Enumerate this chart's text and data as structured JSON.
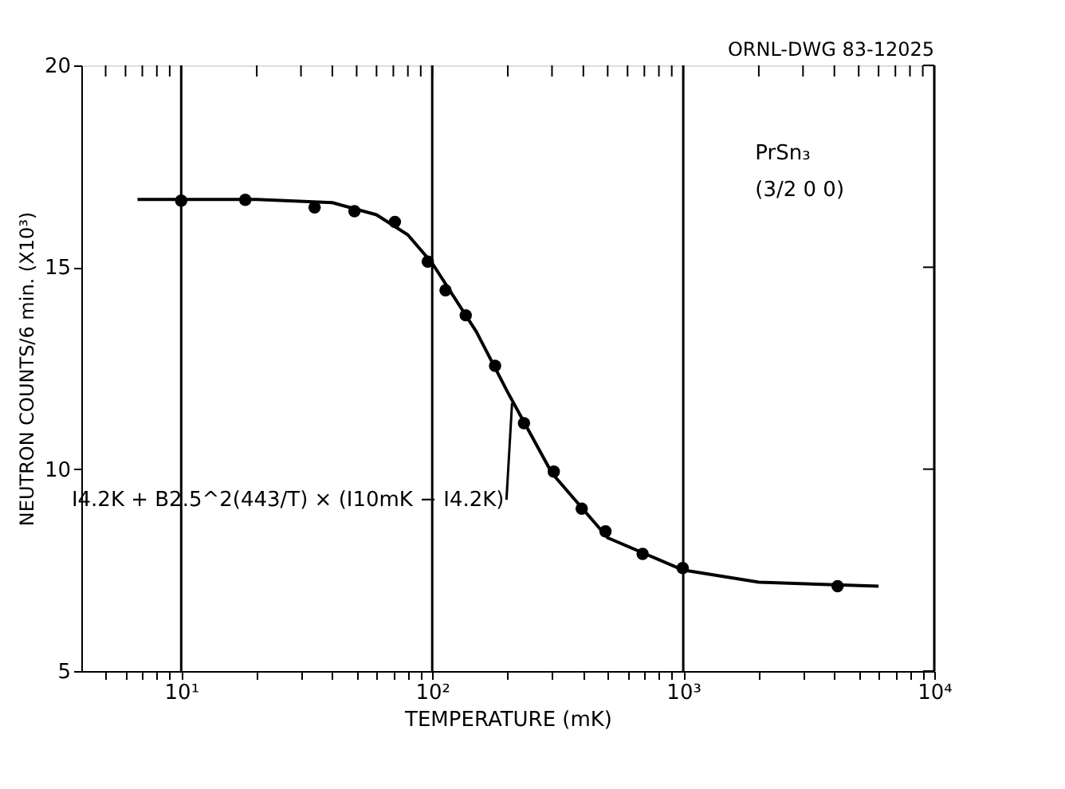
{
  "chart_data": {
    "type": "scatter",
    "xlabel": "TEMPERATURE (mK)",
    "ylabel": "NEUTRON COUNTS/6 min. (X10³)",
    "log": "x",
    "grid": "x",
    "xlim": [
      4,
      10000
    ],
    "ylim": [
      5,
      20
    ],
    "xticks": [
      {
        "value": 5,
        "label": null
      },
      {
        "value": 6,
        "label": null
      },
      {
        "value": 7,
        "label": null
      },
      {
        "value": 8,
        "label": null
      },
      {
        "value": 9,
        "label": null
      },
      {
        "value": 10,
        "label": "10¹"
      },
      {
        "value": 20,
        "label": null
      },
      {
        "value": 30,
        "label": null
      },
      {
        "value": 40,
        "label": null
      },
      {
        "value": 50,
        "label": null
      },
      {
        "value": 60,
        "label": null
      },
      {
        "value": 70,
        "label": null
      },
      {
        "value": 80,
        "label": null
      },
      {
        "value": 90,
        "label": null
      },
      {
        "value": 100,
        "label": "10²"
      },
      {
        "value": 200,
        "label": null
      },
      {
        "value": 300,
        "label": null
      },
      {
        "value": 400,
        "label": null
      },
      {
        "value": 500,
        "label": null
      },
      {
        "value": 600,
        "label": null
      },
      {
        "value": 700,
        "label": null
      },
      {
        "value": 800,
        "label": null
      },
      {
        "value": 900,
        "label": null
      },
      {
        "value": 1000,
        "label": "10³"
      },
      {
        "value": 2000,
        "label": null
      },
      {
        "value": 3000,
        "label": null
      },
      {
        "value": 4000,
        "label": null
      },
      {
        "value": 5000,
        "label": null
      },
      {
        "value": 6000,
        "label": null
      },
      {
        "value": 7000,
        "label": null
      },
      {
        "value": 8000,
        "label": null
      },
      {
        "value": 9000,
        "label": null
      },
      {
        "value": 10000,
        "label": "10⁴"
      }
    ],
    "yticks": [
      5,
      10,
      15,
      20
    ],
    "series": [
      {
        "marker": "circle",
        "color": "#000000",
        "x": [
          10,
          18,
          34,
          49,
          71,
          96,
          113,
          136,
          178,
          232,
          305,
          394,
          490,
          689,
          995,
          4120
        ],
        "values": [
          16.65,
          16.67,
          16.48,
          16.39,
          16.12,
          15.14,
          14.43,
          13.81,
          12.56,
          11.14,
          9.94,
          9.02,
          8.46,
          7.9,
          7.55,
          7.1
        ]
      },
      {
        "type": "line",
        "line_style": "solid",
        "marker": "none",
        "color": "#000000",
        "x": [
          6.7,
          10,
          20,
          40,
          60,
          80,
          100,
          150,
          200,
          300,
          500,
          1000,
          2000,
          6000
        ],
        "values": [
          16.68,
          16.68,
          16.68,
          16.6,
          16.3,
          15.8,
          15.1,
          13.4,
          11.9,
          9.9,
          8.3,
          7.5,
          7.2,
          7.1
        ]
      }
    ],
    "annotations": [
      "ORNL-DWG 83-12025",
      "PrSn₃",
      "(3/2 0 0)",
      {
        "text": "I4.2K + B2.5^2(443/T) × (I10mK − I4.2K)",
        "x": 208,
        "y": 11.64
      }
    ]
  }
}
